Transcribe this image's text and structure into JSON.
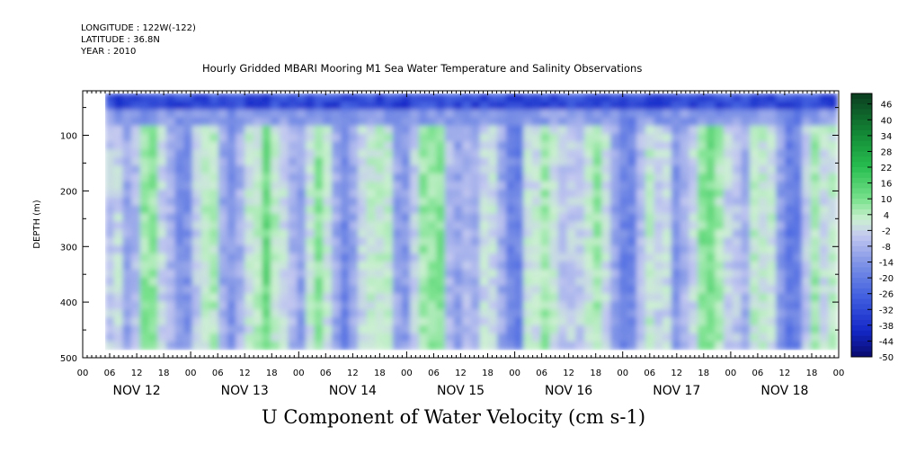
{
  "header": {
    "longitude": "LONGITUDE : 122W(-122)",
    "latitude": "LATITUDE : 36.8N",
    "year": "YEAR : 2010"
  },
  "chart_data": {
    "type": "heatmap",
    "title": "Hourly Gridded MBARI Mooring M1 Sea Water Temperature and Salinity Observations",
    "subtitle": "U Component of Water Velocity (cm s-1)",
    "ylabel": "DEPTH (m)",
    "xlabel": "",
    "ylim": [
      500,
      20
    ],
    "y_ticks": [
      100,
      200,
      300,
      400,
      500
    ],
    "x_range_hours": [
      0,
      168
    ],
    "data_start_hour": 5,
    "x_hour_ticks": [
      "00",
      "06",
      "12",
      "18",
      "00",
      "06",
      "12",
      "18",
      "00",
      "06",
      "12",
      "18",
      "00",
      "06",
      "12",
      "18",
      "00",
      "06",
      "12",
      "18",
      "00",
      "06",
      "12",
      "18",
      "00",
      "06",
      "12",
      "18",
      "00"
    ],
    "day_labels": [
      "NOV 12",
      "NOV 13",
      "NOV 14",
      "NOV 15",
      "NOV 16",
      "NOV 17",
      "NOV 18"
    ],
    "depth_range_data": [
      25,
      485
    ],
    "colorbar": {
      "labels": [
        "46",
        "40",
        "34",
        "28",
        "22",
        "16",
        "10",
        "4",
        "-2",
        "-8",
        "-14",
        "-20",
        "-26",
        "-32",
        "-38",
        "-44",
        "-50"
      ],
      "range": [
        -50,
        50
      ],
      "low_color": "#0a0a6e",
      "mid_color": "#c7c9ee",
      "high_color": "#0c3f1f"
    }
  }
}
